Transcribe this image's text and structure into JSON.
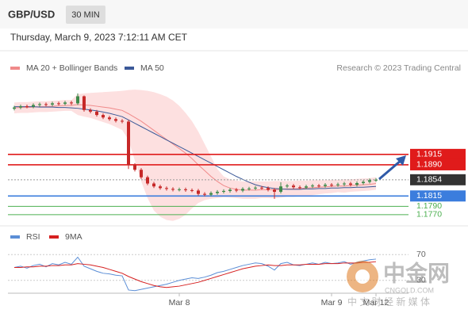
{
  "header": {
    "symbol": "GBP/USD",
    "timeframe": "30 MIN",
    "timestamp": "Thursday, March 9, 2023 7:12:11 AM CET"
  },
  "chart_data": {
    "type": "candlestick",
    "credit": "Research © 2023 Trading Central",
    "categories": [
      null,
      null,
      null,
      null,
      null,
      null,
      null,
      null,
      null,
      null,
      null,
      null,
      null,
      null,
      null,
      null,
      null,
      null,
      null,
      null,
      null,
      null,
      null,
      null,
      null,
      null,
      "Mar 8",
      null,
      null,
      null,
      null,
      null,
      null,
      null,
      null,
      null,
      null,
      null,
      null,
      null,
      null,
      null,
      null,
      null,
      null,
      null,
      null,
      null,
      null,
      null,
      "Mar 9",
      null,
      null,
      null,
      null,
      null,
      null,
      "Mar 12"
    ],
    "open": [
      1.2025,
      1.2028,
      1.2031,
      1.203,
      1.2034,
      1.2036,
      1.2035,
      1.2038,
      1.2037,
      1.204,
      1.2038,
      1.2055,
      1.2022,
      1.2018,
      1.201,
      1.2004,
      1.2,
      1.1996,
      1.1994,
      1.189,
      1.1878,
      1.186,
      1.1845,
      1.1838,
      1.1834,
      1.1832,
      1.183,
      1.1831,
      1.1829,
      1.1828,
      1.182,
      1.1818,
      1.1822,
      1.1825,
      1.1827,
      1.183,
      1.1828,
      1.1832,
      1.1833,
      1.1835,
      1.1834,
      1.183,
      1.1825,
      1.1838,
      1.184,
      1.1836,
      1.1835,
      1.1838,
      1.184,
      1.1839,
      1.1842,
      1.1841,
      1.1843,
      1.1845,
      1.1842,
      1.1846,
      1.1849,
      1.1853
    ],
    "high": [
      1.2032,
      1.2035,
      1.2035,
      1.2038,
      1.204,
      1.204,
      1.2042,
      1.2042,
      1.2044,
      1.2044,
      1.2062,
      1.2057,
      1.2026,
      1.2022,
      1.2014,
      1.2008,
      1.2004,
      1.2,
      1.1998,
      1.1894,
      1.1882,
      1.1864,
      1.1849,
      1.1842,
      1.1838,
      1.1836,
      1.1835,
      1.1835,
      1.1833,
      1.1832,
      1.1824,
      1.1826,
      1.1829,
      1.1831,
      1.1834,
      1.1834,
      1.1836,
      1.1837,
      1.1839,
      1.1839,
      1.1838,
      1.1834,
      1.1848,
      1.1844,
      1.1844,
      1.184,
      1.1842,
      1.1844,
      1.1844,
      1.1846,
      1.1846,
      1.1847,
      1.1849,
      1.1849,
      1.185,
      1.1853,
      1.1857,
      1.1858
    ],
    "low": [
      1.2021,
      1.2024,
      1.2026,
      1.2026,
      1.203,
      1.2031,
      1.2031,
      1.2033,
      1.2033,
      1.2034,
      1.2034,
      1.2018,
      1.2014,
      1.2006,
      1.2,
      1.1996,
      1.1992,
      1.199,
      1.188,
      1.1874,
      1.1856,
      1.1841,
      1.1834,
      1.183,
      1.1828,
      1.1826,
      1.1826,
      1.1825,
      1.1824,
      1.1816,
      1.1814,
      1.1814,
      1.1818,
      1.1821,
      1.1823,
      1.1824,
      1.1824,
      1.1828,
      1.1829,
      1.183,
      1.1826,
      1.1808,
      1.1821,
      1.1834,
      1.1832,
      1.1831,
      1.1831,
      1.1834,
      1.1835,
      1.1835,
      1.1837,
      1.1837,
      1.1839,
      1.1838,
      1.1838,
      1.1842,
      1.1845,
      1.1849
    ],
    "close": [
      1.2028,
      1.2031,
      1.203,
      1.2034,
      1.2036,
      1.2035,
      1.2038,
      1.2037,
      1.204,
      1.2038,
      1.2055,
      1.2022,
      1.2018,
      1.201,
      1.2004,
      1.2,
      1.1996,
      1.1994,
      1.189,
      1.1878,
      1.186,
      1.1845,
      1.1838,
      1.1834,
      1.1832,
      1.183,
      1.1831,
      1.1829,
      1.1828,
      1.182,
      1.1818,
      1.1822,
      1.1825,
      1.1827,
      1.183,
      1.1828,
      1.1832,
      1.1833,
      1.1835,
      1.1834,
      1.183,
      1.1825,
      1.1838,
      1.184,
      1.1836,
      1.1835,
      1.1838,
      1.184,
      1.1839,
      1.1842,
      1.1841,
      1.1843,
      1.1845,
      1.1842,
      1.1846,
      1.1849,
      1.1853,
      1.1854
    ],
    "up_color": "#3d8a4a",
    "down_color": "#c62828",
    "ylim": [
      1.1743,
      1.2096
    ],
    "series": [
      {
        "name": "MA 20 + Bollinger Bands",
        "color": "#f08a8a",
        "band_color": "#fde0e0",
        "values": [
          1.2027,
          1.2028,
          1.2028,
          1.2029,
          1.203,
          1.203,
          1.2031,
          1.2032,
          1.2033,
          1.2033,
          1.2035,
          1.2034,
          1.2033,
          1.2031,
          1.2029,
          1.2027,
          1.2024,
          1.2021,
          1.2013,
          1.2004,
          1.1995,
          1.1984,
          1.1973,
          1.1962,
          1.1951,
          1.194,
          1.1929,
          1.1918,
          1.1905,
          1.189,
          1.1876,
          1.1862,
          1.185,
          1.184,
          1.1834,
          1.1831,
          1.1829,
          1.1829,
          1.1829,
          1.183,
          1.183,
          1.183,
          1.1831,
          1.1832,
          1.1832,
          1.1833,
          1.1834,
          1.1835,
          1.1836,
          1.1837,
          1.1838,
          1.1839,
          1.1839,
          1.184,
          1.1841,
          1.1842,
          1.1843,
          1.1845
        ],
        "upper": [
          1.204,
          1.2041,
          1.2041,
          1.2042,
          1.2043,
          1.2043,
          1.2044,
          1.2045,
          1.2046,
          1.2046,
          1.206,
          1.2062,
          1.2063,
          1.2064,
          1.2065,
          1.2066,
          1.2067,
          1.2068,
          1.207,
          1.2071,
          1.207,
          1.2068,
          1.2065,
          1.206,
          1.2054,
          1.2045,
          1.2032,
          1.2015,
          1.1995,
          1.197,
          1.194,
          1.191,
          1.188,
          1.1862,
          1.1855,
          1.1852,
          1.185,
          1.185,
          1.185,
          1.185,
          1.185,
          1.1851,
          1.1851,
          1.1851,
          1.1851,
          1.1852,
          1.1852,
          1.1853,
          1.1853,
          1.1853,
          1.1854,
          1.1854,
          1.1855,
          1.1855,
          1.1856,
          1.1857,
          1.1858,
          1.186
        ],
        "lower": [
          1.2014,
          1.2015,
          1.2015,
          1.2016,
          1.2017,
          1.2017,
          1.2018,
          1.2019,
          1.202,
          1.202,
          1.201,
          1.2006,
          1.2003,
          1.1998,
          1.1993,
          1.1988,
          1.1981,
          1.1974,
          1.195,
          1.19,
          1.185,
          1.181,
          1.178,
          1.1765,
          1.1757,
          1.1755,
          1.176,
          1.177,
          1.1785,
          1.1798,
          1.1805,
          1.1808,
          1.181,
          1.1812,
          1.1811,
          1.181,
          1.1808,
          1.1808,
          1.1808,
          1.181,
          1.181,
          1.1809,
          1.1811,
          1.1813,
          1.1813,
          1.1814,
          1.1816,
          1.1817,
          1.1819,
          1.1821,
          1.1822,
          1.1824,
          1.1823,
          1.1825,
          1.1826,
          1.1827,
          1.1828,
          1.183
        ]
      },
      {
        "name": "MA 50",
        "color": "#3b5998",
        "values": [
          1.203,
          1.203,
          1.203,
          1.203,
          1.2029,
          1.2029,
          1.2029,
          1.2028,
          1.2028,
          1.2027,
          1.2026,
          1.2024,
          1.2022,
          1.202,
          1.2017,
          1.2014,
          1.201,
          1.2006,
          1.1998,
          1.199,
          1.1982,
          1.1974,
          1.1966,
          1.1958,
          1.195,
          1.1942,
          1.1934,
          1.1926,
          1.1918,
          1.191,
          1.1902,
          1.1894,
          1.1886,
          1.1878,
          1.187,
          1.1862,
          1.1855,
          1.1848,
          1.1842,
          1.1838,
          1.1835,
          1.1833,
          1.1832,
          1.1831,
          1.1831,
          1.1831,
          1.1832,
          1.1832,
          1.1833,
          1.1833,
          1.1834,
          1.1834,
          1.1835,
          1.1835,
          1.1836,
          1.1836,
          1.1837,
          1.1838
        ]
      }
    ],
    "levels": [
      {
        "value": 1.1915,
        "color": "#e01b1b",
        "style": "box"
      },
      {
        "value": 1.189,
        "label": "1.1890",
        "color": "#e01b1b",
        "style": "box"
      },
      {
        "value": 1.1854,
        "color": "#333333",
        "style": "dotted"
      },
      {
        "value": 1.1815,
        "color": "#3b7ddd",
        "style": "box"
      },
      {
        "value": 1.179,
        "label": "1.1790",
        "color": "#4caf50",
        "style": "plain"
      },
      {
        "value": 1.177,
        "label": "1.1770",
        "color": "#4caf50",
        "style": "plain"
      }
    ],
    "rsi": {
      "ylim": [
        10,
        90
      ],
      "yticks": [
        70,
        30
      ],
      "series": [
        {
          "name": "RSI",
          "color": "#5b8ed6",
          "values": [
            50,
            52,
            49,
            53,
            55,
            51,
            56,
            54,
            58,
            55,
            66,
            52,
            48,
            44,
            41,
            40,
            38,
            37,
            15,
            14,
            16,
            18,
            20,
            22,
            24,
            27,
            30,
            32,
            34,
            33,
            35,
            38,
            42,
            44,
            47,
            50,
            53,
            55,
            57,
            56,
            52,
            46,
            56,
            58,
            54,
            53,
            55,
            57,
            55,
            58,
            56,
            57,
            59,
            55,
            58,
            60,
            62,
            63
          ]
        },
        {
          "name": "9MA",
          "color": "#d62020",
          "values": [
            50,
            50,
            51,
            51,
            52,
            52,
            53,
            53,
            54,
            54,
            56,
            55,
            54,
            52,
            50,
            47,
            44,
            41,
            36,
            32,
            28,
            25,
            22,
            20,
            19,
            20,
            21,
            23,
            25,
            27,
            30,
            33,
            36,
            39,
            42,
            45,
            48,
            50,
            52,
            53,
            54,
            53,
            53,
            54,
            54,
            54,
            55,
            55,
            55,
            56,
            56,
            56,
            57,
            57,
            57,
            58,
            58,
            59
          ]
        }
      ]
    }
  },
  "watermark": {
    "logo": "中金网",
    "domain": "CNGOLD.COM",
    "tagline": "中 文 财 经 新 媒 体"
  }
}
